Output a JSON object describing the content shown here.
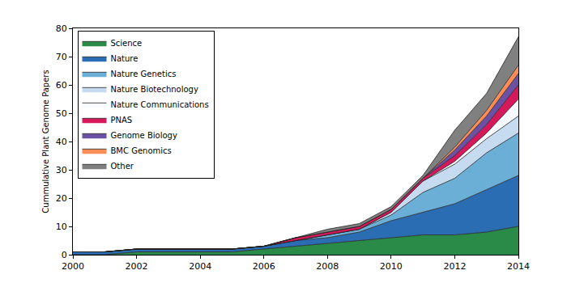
{
  "chart_data": {
    "type": "area",
    "stacked": true,
    "y_label": "Cummulative Plant Genome Papers",
    "x": [
      2000,
      2001,
      2002,
      2003,
      2004,
      2005,
      2006,
      2007,
      2008,
      2009,
      2010,
      2011,
      2012,
      2013,
      2014
    ],
    "xlim": [
      2000,
      2014
    ],
    "xticks": [
      2000,
      2002,
      2004,
      2006,
      2008,
      2010,
      2012,
      2014
    ],
    "ylim": [
      0,
      80
    ],
    "yticks": [
      0,
      10,
      20,
      30,
      40,
      50,
      60,
      70,
      80
    ],
    "grid": false,
    "legend": "upper left",
    "series": [
      {
        "name": "Science",
        "color": "#2a8a48",
        "values": [
          0,
          0,
          1,
          1,
          1,
          1,
          2,
          3,
          4,
          5,
          6,
          7,
          7,
          8,
          10
        ]
      },
      {
        "name": "Nature",
        "color": "#2b6db3",
        "values": [
          1,
          1,
          1,
          1,
          1,
          1,
          1,
          2,
          2,
          3,
          6,
          8,
          11,
          15,
          18
        ]
      },
      {
        "name": "Nature Genetics",
        "color": "#6baed6",
        "values": [
          0,
          0,
          0,
          0,
          0,
          0,
          0,
          0,
          1,
          1,
          2,
          7,
          9,
          13,
          15
        ]
      },
      {
        "name": "Nature Biotechnology",
        "color": "#c6dbef",
        "values": [
          0,
          0,
          0,
          0,
          0,
          0,
          0,
          0,
          0,
          0,
          1,
          4,
          5,
          5,
          6
        ]
      },
      {
        "name": "Nature Communications",
        "color": "#f7fbff",
        "values": [
          0,
          0,
          0,
          0,
          0,
          0,
          0,
          0,
          0,
          0,
          0,
          0,
          1,
          2,
          6
        ]
      },
      {
        "name": "PNAS",
        "color": "#d6195a",
        "values": [
          0,
          0,
          0,
          0,
          0,
          0,
          0,
          1,
          1,
          1,
          1,
          1,
          2,
          3,
          5
        ]
      },
      {
        "name": "Genome Biology",
        "color": "#6a51a3",
        "values": [
          0,
          0,
          0,
          0,
          0,
          0,
          0,
          0,
          0,
          0,
          0,
          0,
          2,
          3,
          4
        ]
      },
      {
        "name": "BMC Genomics",
        "color": "#fd8d56",
        "values": [
          0,
          0,
          0,
          0,
          0,
          0,
          0,
          0,
          0,
          0,
          0,
          0,
          1,
          2,
          3
        ]
      },
      {
        "name": "Other",
        "color": "#808080",
        "values": [
          0,
          0,
          0,
          0,
          0,
          0,
          0,
          0,
          1,
          1,
          1,
          1,
          6,
          6,
          10
        ]
      }
    ]
  }
}
